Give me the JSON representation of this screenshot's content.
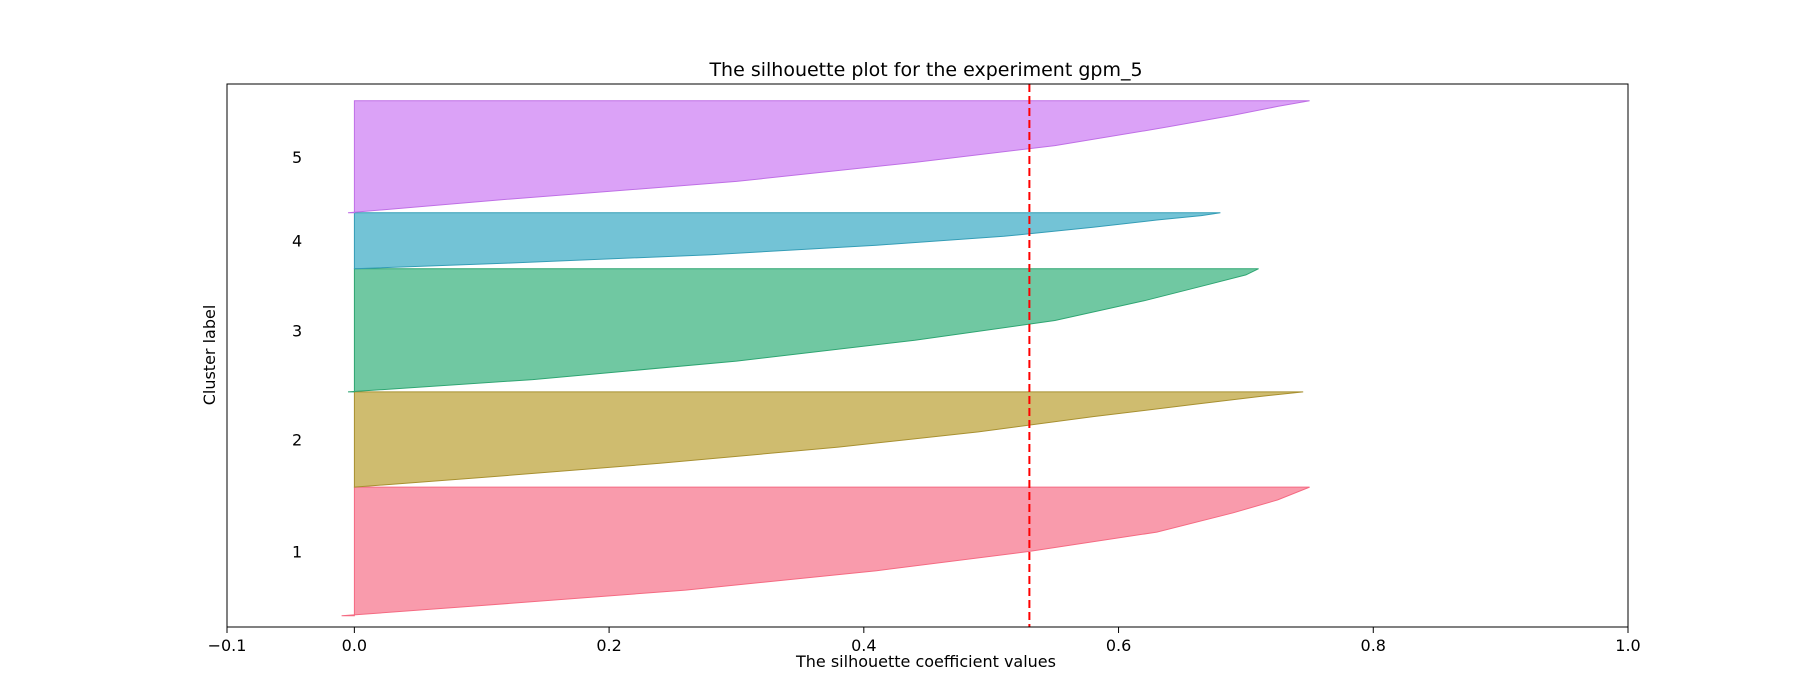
{
  "chart_data": {
    "type": "silhouette",
    "title": "The silhouette plot for the experiment gpm_5",
    "xlabel": "The silhouette coefficient values",
    "ylabel": "Cluster label",
    "xlim": [
      -0.1,
      1.0
    ],
    "xticks": [
      -0.1,
      0.0,
      0.2,
      0.4,
      0.6,
      0.8,
      1.0
    ],
    "xtick_labels": [
      "−0.1",
      "0.0",
      "0.2",
      "0.4",
      "0.6",
      "0.8",
      "1.0"
    ],
    "yticks": [],
    "grid": false,
    "average_silhouette": 0.53,
    "clusters": [
      {
        "label": "1",
        "color": "#f77189",
        "edge_color": "#f56a82",
        "band": [
          0,
          23
        ],
        "profile": [
          [
            0.0,
            -0.01
          ],
          [
            0.08,
            0.1
          ],
          [
            0.2,
            0.26
          ],
          [
            0.35,
            0.41
          ],
          [
            0.5,
            0.53
          ],
          [
            0.65,
            0.63
          ],
          [
            0.8,
            0.69
          ],
          [
            0.9,
            0.725
          ],
          [
            1.0,
            0.75
          ]
        ]
      },
      {
        "label": "2",
        "color": "#bb9f32",
        "edge_color": "#a89030",
        "band": [
          23,
          40
        ],
        "profile": [
          [
            0.0,
            0.0
          ],
          [
            0.1,
            0.1
          ],
          [
            0.25,
            0.24
          ],
          [
            0.42,
            0.38
          ],
          [
            0.58,
            0.49
          ],
          [
            0.74,
            0.58
          ],
          [
            0.87,
            0.66
          ],
          [
            0.95,
            0.71
          ],
          [
            1.0,
            0.745
          ]
        ]
      },
      {
        "label": "3",
        "color": "#33b07a",
        "edge_color": "#2ea572",
        "band": [
          40,
          62
        ],
        "profile": [
          [
            0.0,
            -0.005
          ],
          [
            0.1,
            0.14
          ],
          [
            0.25,
            0.3
          ],
          [
            0.42,
            0.44
          ],
          [
            0.58,
            0.55
          ],
          [
            0.74,
            0.62
          ],
          [
            0.87,
            0.67
          ],
          [
            0.95,
            0.7
          ],
          [
            1.0,
            0.71
          ]
        ]
      },
      {
        "label": "4",
        "color": "#38a9c5",
        "edge_color": "#349db6",
        "band": [
          62,
          72
        ],
        "profile": [
          [
            0.0,
            0.0
          ],
          [
            0.1,
            0.12
          ],
          [
            0.25,
            0.28
          ],
          [
            0.42,
            0.41
          ],
          [
            0.58,
            0.51
          ],
          [
            0.74,
            0.58
          ],
          [
            0.87,
            0.63
          ],
          [
            0.95,
            0.665
          ],
          [
            1.0,
            0.68
          ]
        ]
      },
      {
        "label": "5",
        "color": "#cc7af4",
        "edge_color": "#bf6fe6",
        "band": [
          72,
          92
        ],
        "profile": [
          [
            0.0,
            -0.005
          ],
          [
            0.12,
            0.12
          ],
          [
            0.28,
            0.3
          ],
          [
            0.45,
            0.44
          ],
          [
            0.6,
            0.55
          ],
          [
            0.75,
            0.63
          ],
          [
            0.87,
            0.69
          ],
          [
            0.95,
            0.725
          ],
          [
            1.0,
            0.75
          ]
        ]
      }
    ]
  }
}
